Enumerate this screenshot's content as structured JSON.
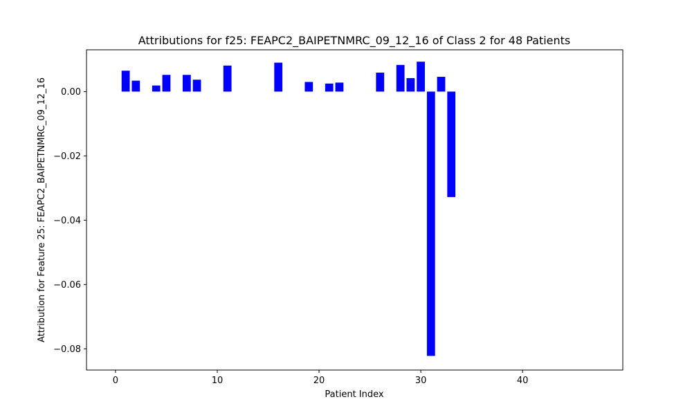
{
  "chart_data": {
    "type": "bar",
    "title": "Attributions for f25: FEAPC2_BAIPETNMRC_09_12_16 of Class 2 for 48 Patients",
    "xlabel": "Patient Index",
    "ylabel": "Attribution for Feature 25: FEAPC2_BAIPETNMRC_09_12_16",
    "xlim": [
      -2.85,
      49.85
    ],
    "ylim": [
      -0.0866,
      0.013
    ],
    "xticks": [
      0,
      10,
      20,
      30,
      40
    ],
    "xtick_labels": [
      "0",
      "10",
      "20",
      "30",
      "40"
    ],
    "yticks": [
      0.0,
      -0.02,
      -0.04,
      -0.06,
      -0.08
    ],
    "ytick_labels": [
      "0.00",
      "−0.02",
      "−0.04",
      "−0.06",
      "−0.08"
    ],
    "bar_color": "#0000ff",
    "bar_width": 0.8,
    "x": [
      0,
      1,
      2,
      3,
      4,
      5,
      6,
      7,
      8,
      9,
      10,
      11,
      12,
      13,
      14,
      15,
      16,
      17,
      18,
      19,
      20,
      21,
      22,
      23,
      24,
      25,
      26,
      27,
      28,
      29,
      30,
      31,
      32,
      33,
      34,
      35,
      36,
      37,
      38,
      39,
      40,
      41,
      42,
      43,
      44,
      45,
      46,
      47
    ],
    "values": [
      0,
      0.0065,
      0.0034,
      0,
      0.0019,
      0.0052,
      0,
      0.0052,
      0.0037,
      0,
      0,
      0.0081,
      0,
      0,
      0,
      0,
      0.009,
      0,
      0,
      0.003,
      0,
      0.0025,
      0.0028,
      0,
      0,
      0,
      0.0059,
      0,
      0.0083,
      0.0042,
      0.0093,
      -0.0822,
      0.0046,
      -0.0328,
      0,
      0,
      0,
      0,
      0,
      0,
      0,
      0,
      0,
      0,
      0,
      0,
      0,
      0
    ],
    "grid": false,
    "legend": "none"
  }
}
